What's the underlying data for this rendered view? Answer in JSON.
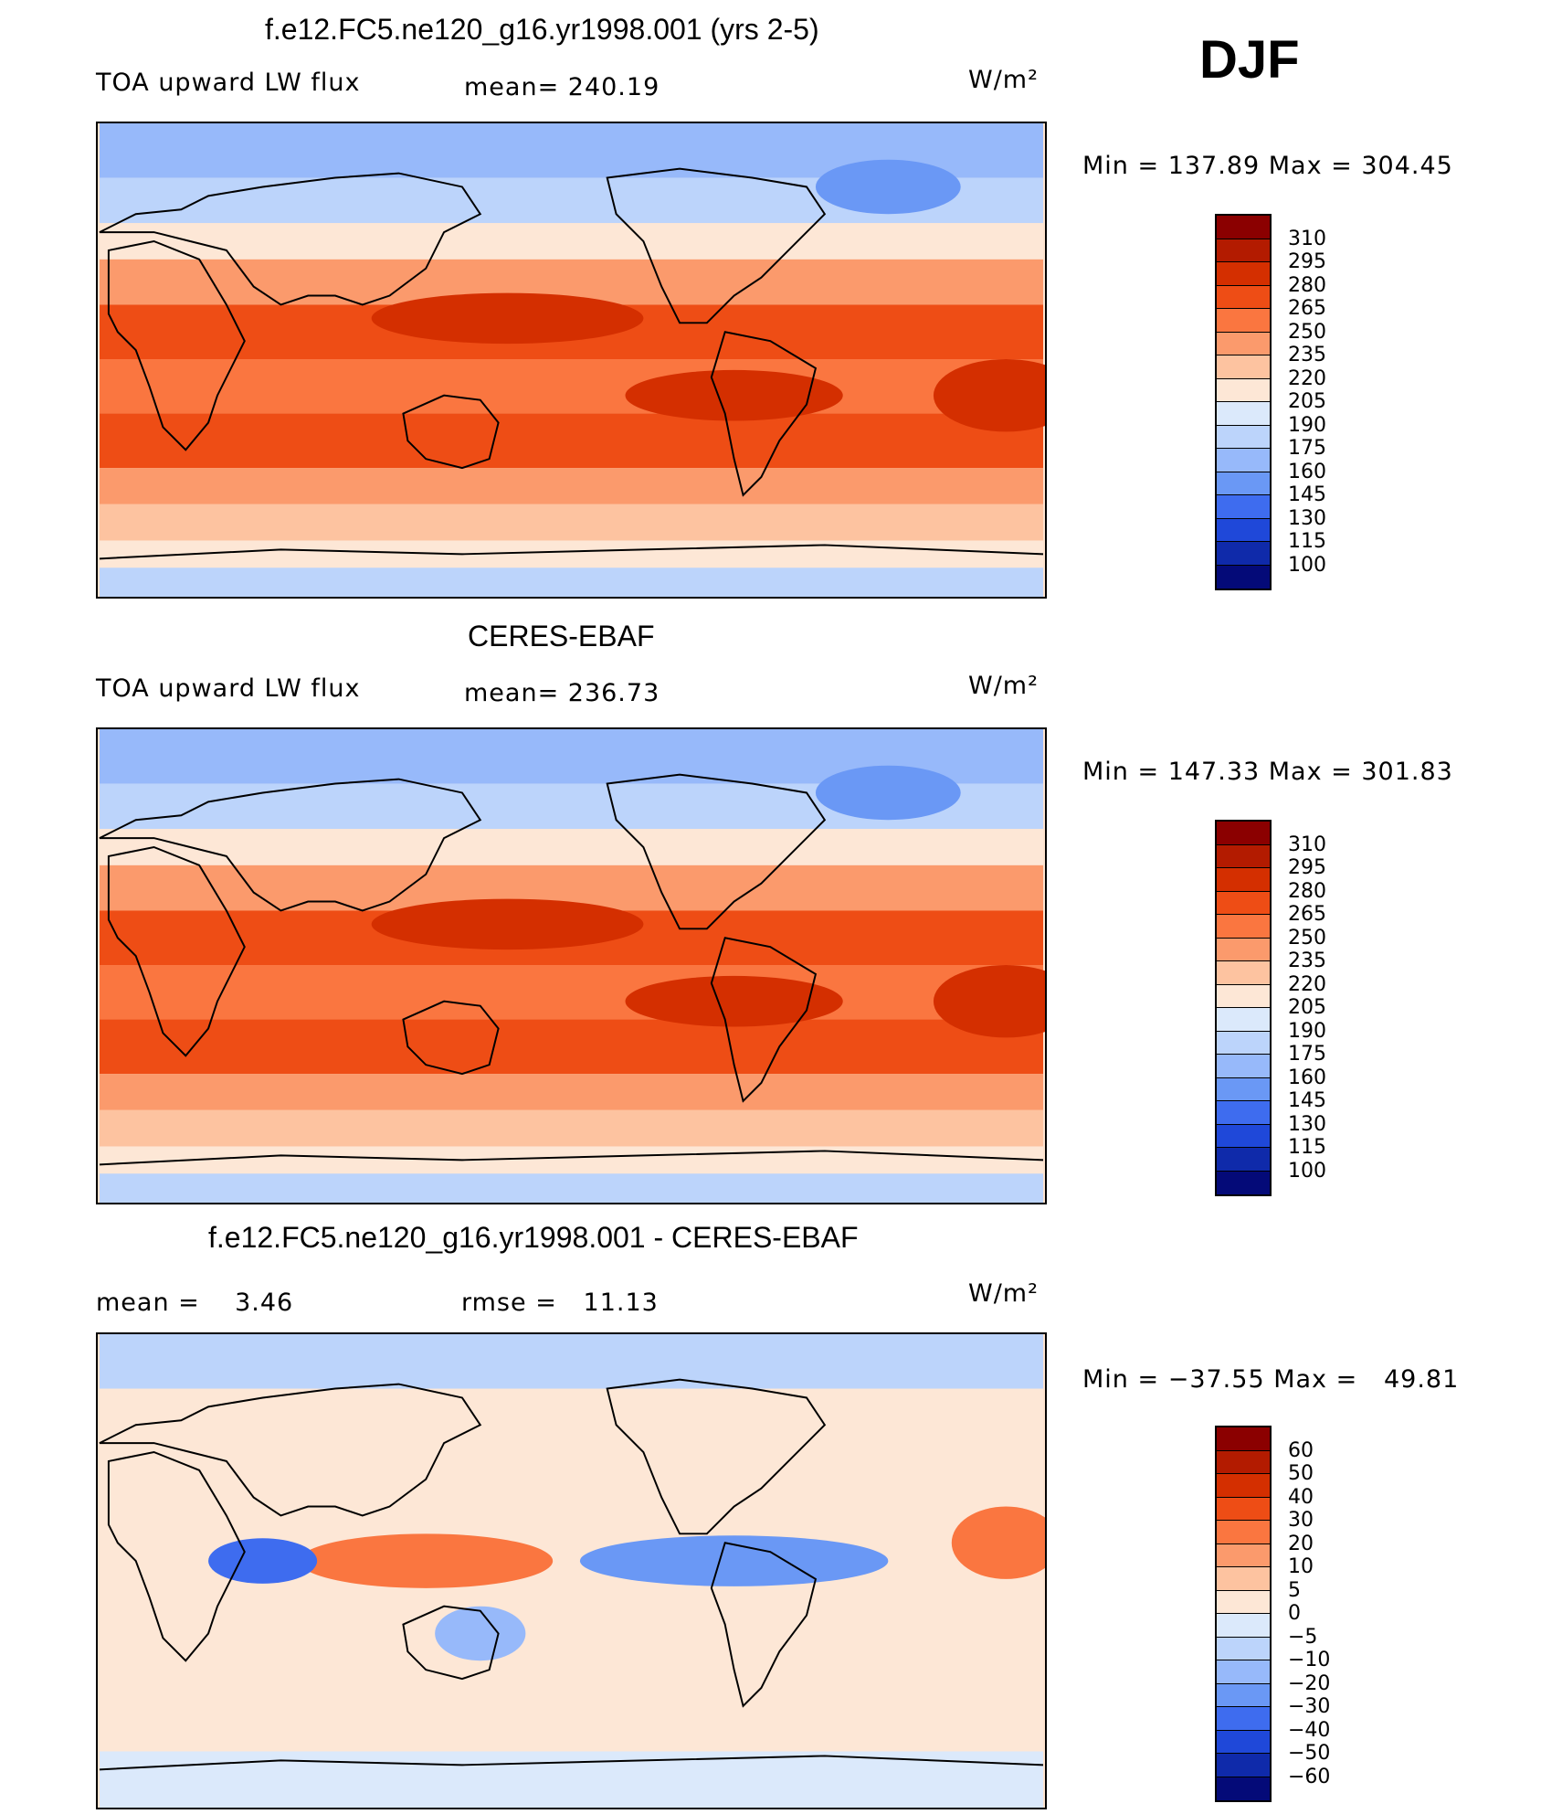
{
  "season": "DJF",
  "units": "W/m²",
  "palette_abs": [
    "#8b0000",
    "#b31b00",
    "#d42f00",
    "#ee4d15",
    "#fa7640",
    "#fb9a6c",
    "#fdc3a0",
    "#fde7d6",
    "#dbe9fb",
    "#bcd4fb",
    "#97b9fa",
    "#6a98f5",
    "#3e6cef",
    "#1f48d9",
    "#0f2aaa",
    "#040a78"
  ],
  "palette_diff": [
    "#8b0000",
    "#b31b00",
    "#d42f00",
    "#ee4d15",
    "#fa7640",
    "#fb9a6c",
    "#fdc3a0",
    "#fde7d6",
    "#dbe9fb",
    "#bcd4fb",
    "#97b9fa",
    "#6a98f5",
    "#3e6cef",
    "#1f48d9",
    "#0f2aaa",
    "#040a78"
  ],
  "panels": [
    {
      "title": "f.e12.FC5.ne120_g16.yr1998.001 (yrs 2-5)",
      "left_label": "TOA upward LW flux",
      "mid_label": "mean= 240.19",
      "minmax": "Min = 137.89 Max = 304.45",
      "ticks": [
        "310",
        "295",
        "280",
        "265",
        "250",
        "235",
        "220",
        "205",
        "190",
        "175",
        "160",
        "145",
        "130",
        "115",
        "100"
      ]
    },
    {
      "title": "CERES-EBAF",
      "left_label": "TOA upward LW flux",
      "mid_label": "mean= 236.73",
      "minmax": "Min = 147.33 Max = 301.83",
      "ticks": [
        "310",
        "295",
        "280",
        "265",
        "250",
        "235",
        "220",
        "205",
        "190",
        "175",
        "160",
        "145",
        "130",
        "115",
        "100"
      ]
    },
    {
      "title": "f.e12.FC5.ne120_g16.yr1998.001 - CERES-EBAF",
      "left_label": "mean =    3.46",
      "mid_label": "rmse =   11.13",
      "minmax": "Min = −37.55 Max =   49.81",
      "ticks": [
        "60",
        "50",
        "40",
        "30",
        "20",
        "10",
        "5",
        "0",
        "−5",
        "−10",
        "−20",
        "−30",
        "−40",
        "−50",
        "−60"
      ]
    }
  ]
}
